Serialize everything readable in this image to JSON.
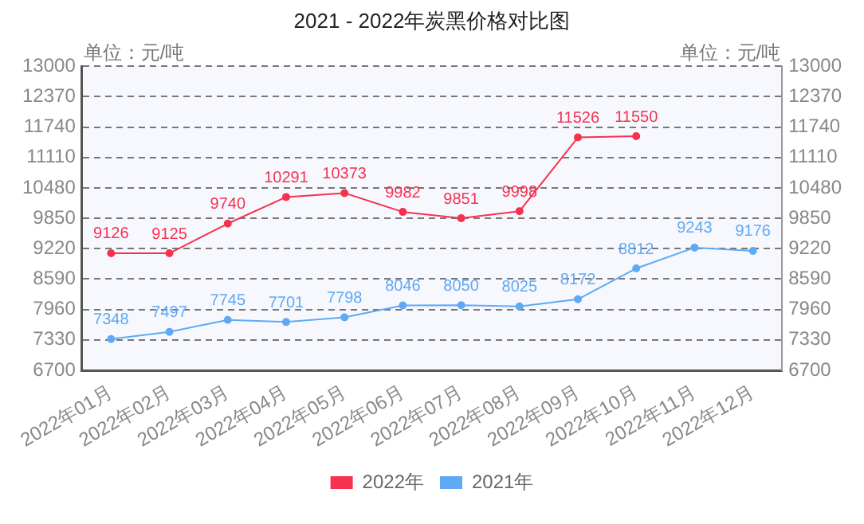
{
  "chart_data": {
    "type": "line",
    "title": "2021 - 2022年炭黑价格对比图",
    "categories": [
      "2022年01月",
      "2022年02月",
      "2022年03月",
      "2022年04月",
      "2022年05月",
      "2022年06月",
      "2022年07月",
      "2022年08月",
      "2022年09月",
      "2022年10月",
      "2022年11月",
      "2022年12月"
    ],
    "series": [
      {
        "name": "2022年",
        "color": "#f5324f",
        "values": [
          9126,
          9125,
          9740,
          10291,
          10373,
          9982,
          9851,
          9998,
          11526,
          11550,
          null,
          null
        ]
      },
      {
        "name": "2021年",
        "color": "#5fa9f5",
        "values": [
          7348,
          7497,
          7745,
          7701,
          7798,
          8046,
          8050,
          8025,
          8172,
          8812,
          9243,
          9176
        ]
      }
    ],
    "ylim": [
      6700,
      13000
    ],
    "yticks": [
      6700,
      7330,
      7960,
      8590,
      9220,
      9850,
      10480,
      11110,
      11740,
      12370,
      13000
    ],
    "y2lim": [
      6700,
      13000
    ],
    "y2ticks": [
      6700,
      7330,
      7960,
      8590,
      9220,
      9850,
      10480,
      11110,
      11740,
      12370,
      13000
    ],
    "annotations": [
      "单位：元/吨",
      "单位：元/吨"
    ],
    "grid": "y",
    "legend": "bottom",
    "marker": "circle",
    "line_style": "solid",
    "data_labels": true
  }
}
